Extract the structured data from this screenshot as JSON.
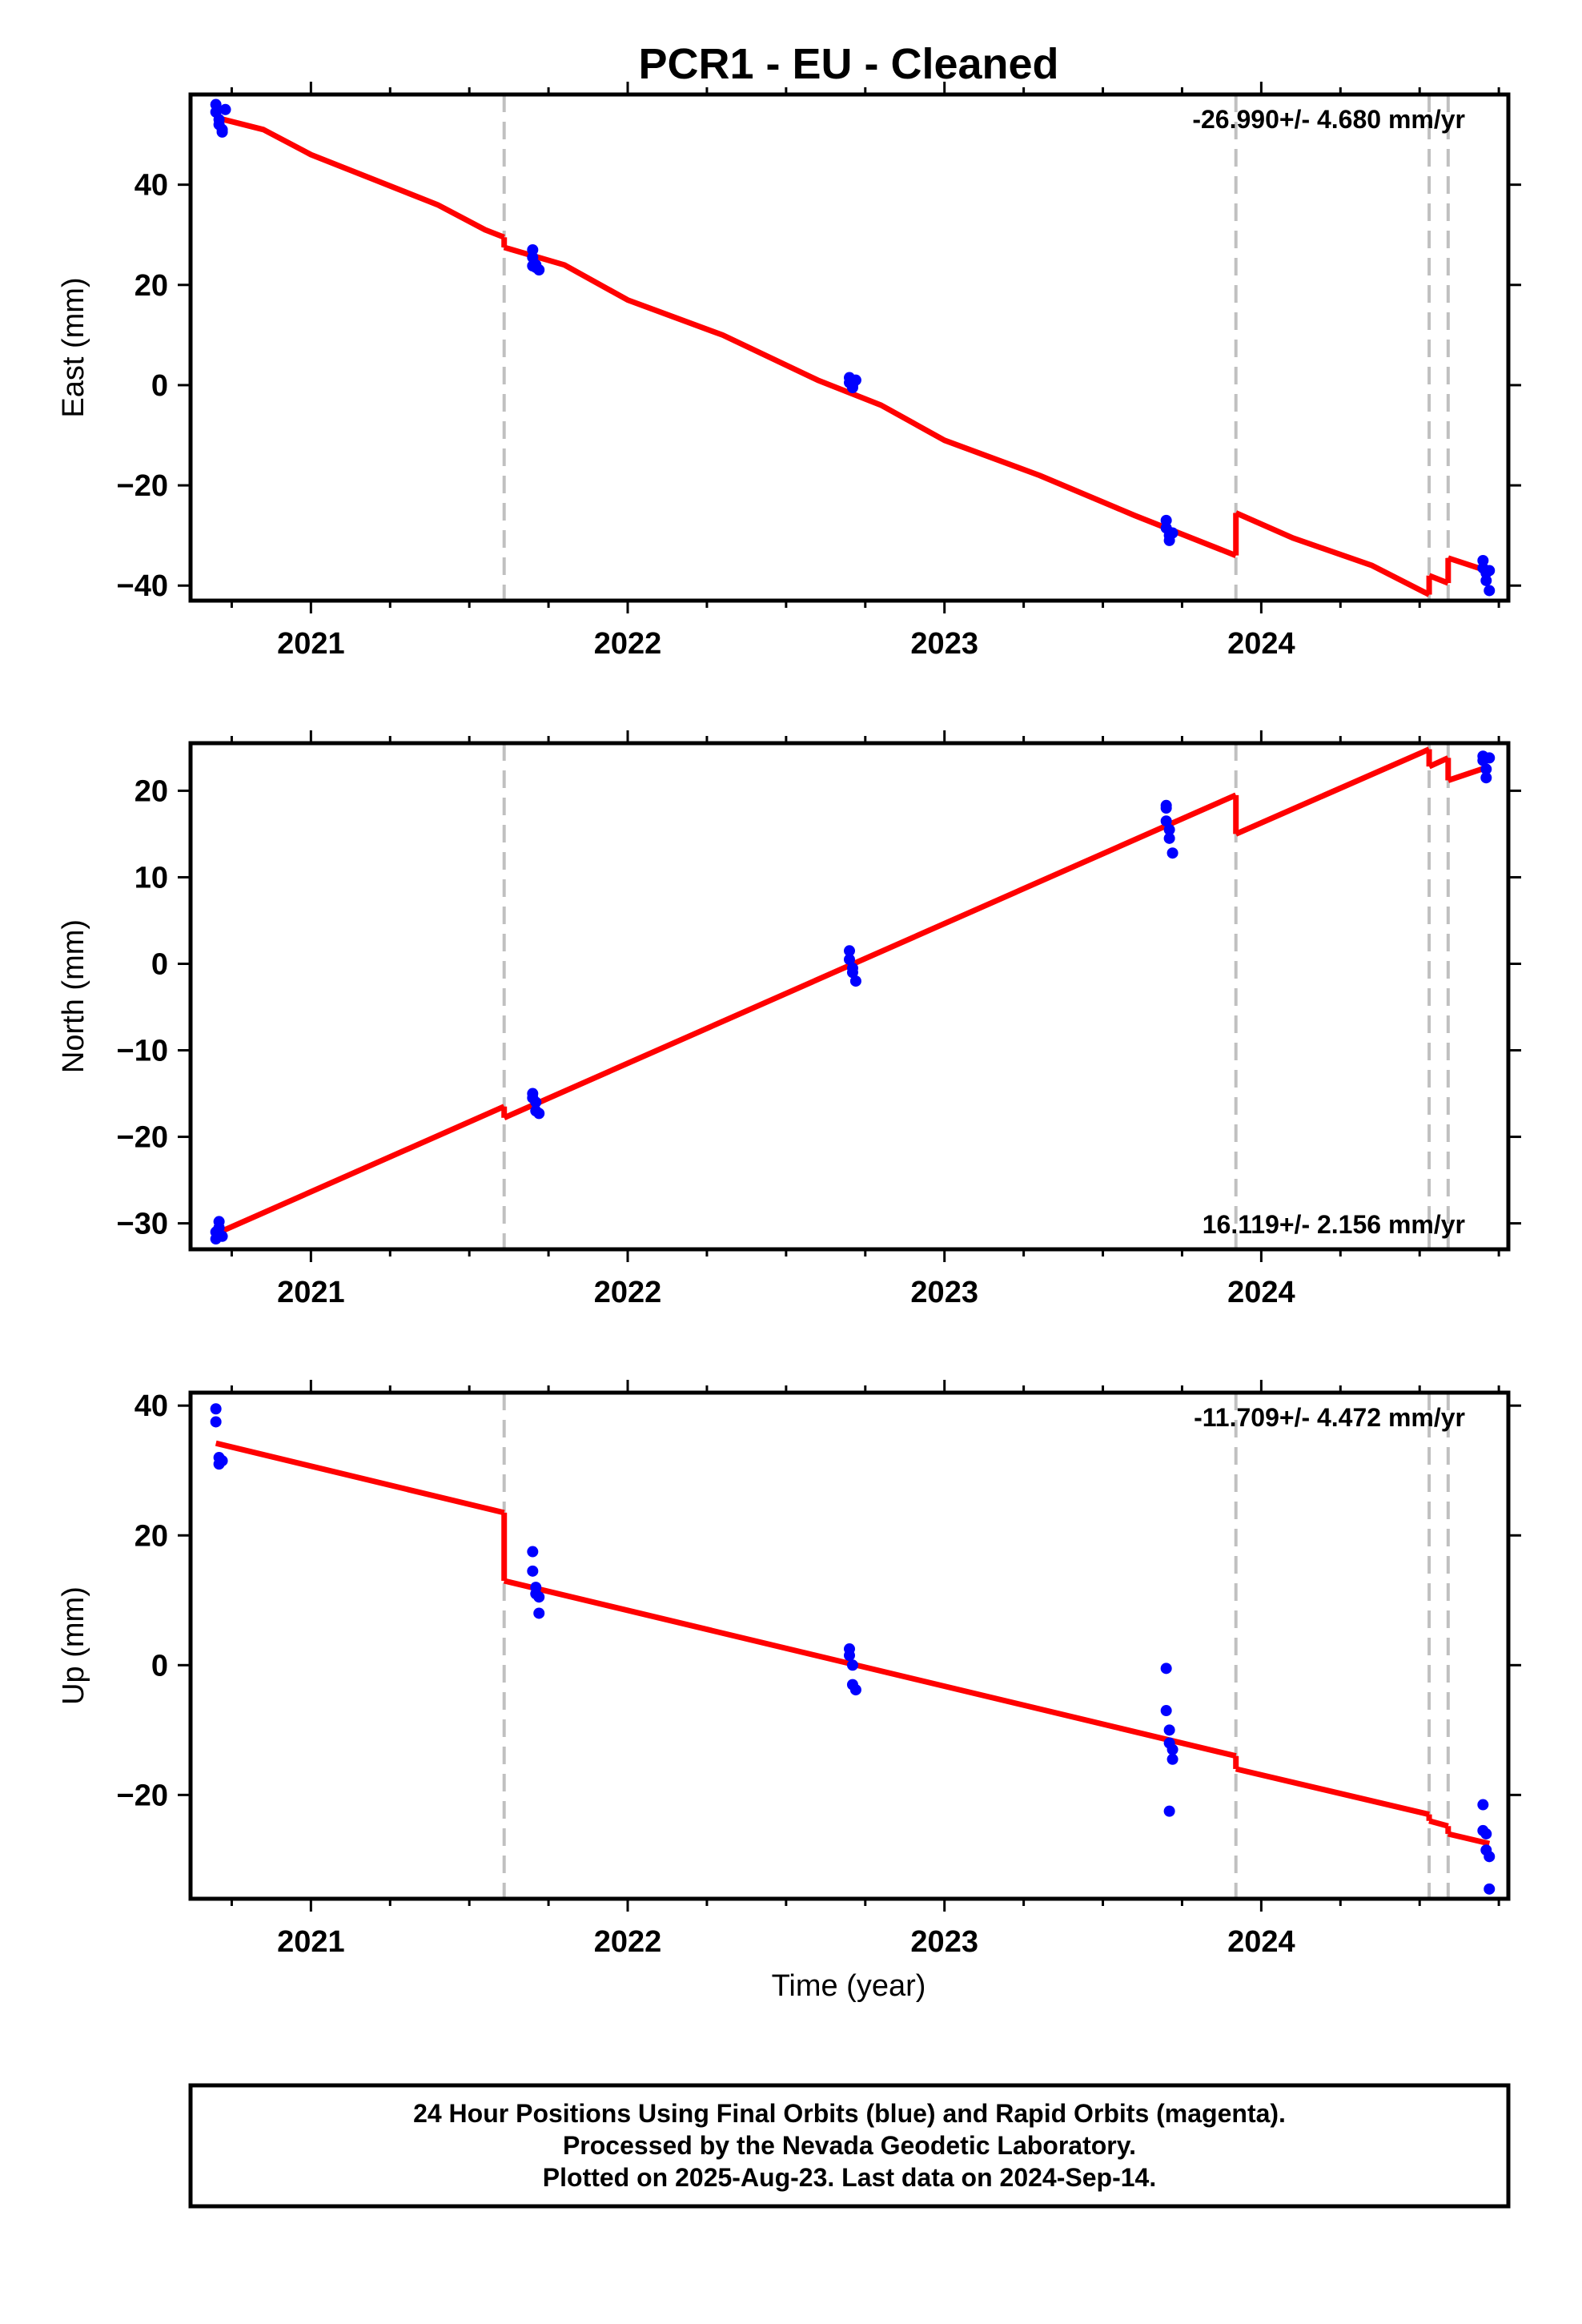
{
  "chart_data": {
    "title": "PCR1  - EU - Cleaned",
    "type": "scatter",
    "x_axis": {
      "xlabel": "Time (year)",
      "xlim": [
        2020.62,
        2024.78
      ],
      "tick_labels": [
        "2021",
        "2022",
        "2023",
        "2024"
      ],
      "tick_values": [
        2021,
        2022,
        2023,
        2024
      ]
    },
    "colors": {
      "data": "#0000ff",
      "model": "#ff0000",
      "offsets": "#c0c0c0",
      "frame": "#000000"
    },
    "offset_epochs": [
      2021.61,
      2023.92,
      2024.53,
      2024.59
    ],
    "panels": [
      {
        "name": "east",
        "ylabel": "East (mm)",
        "ylim": [
          -43,
          58
        ],
        "yticks": [
          -40,
          -20,
          0,
          20,
          40
        ],
        "ytick_labels": [
          "−40",
          "−20",
          "0",
          "20",
          "40"
        ],
        "rate_label": "-26.990+/- 4.680 mm/yr",
        "rate_position": "top-right",
        "points": [
          [
            2020.7,
            56.0
          ],
          [
            2020.7,
            54.5
          ],
          [
            2020.71,
            53.0
          ],
          [
            2020.71,
            52.0
          ],
          [
            2020.72,
            51.0
          ],
          [
            2020.72,
            50.5
          ],
          [
            2020.73,
            55.0
          ],
          [
            2021.7,
            27.0
          ],
          [
            2021.7,
            25.5
          ],
          [
            2021.71,
            24.0
          ],
          [
            2021.71,
            23.5
          ],
          [
            2021.72,
            23.0
          ],
          [
            2021.7,
            23.8
          ],
          [
            2022.7,
            1.5
          ],
          [
            2022.7,
            0.5
          ],
          [
            2022.71,
            0.0
          ],
          [
            2022.71,
            -0.5
          ],
          [
            2022.72,
            1.0
          ],
          [
            2023.7,
            -27.0
          ],
          [
            2023.7,
            -28.5
          ],
          [
            2023.71,
            -30.0
          ],
          [
            2023.71,
            -31.0
          ],
          [
            2023.72,
            -29.5
          ],
          [
            2024.7,
            -35.0
          ],
          [
            2024.7,
            -36.5
          ],
          [
            2024.71,
            -37.5
          ],
          [
            2024.71,
            -39.0
          ],
          [
            2024.72,
            -41.0
          ],
          [
            2024.72,
            -37.0
          ]
        ],
        "model_segments": [
          [
            [
              2020.7,
              53.4
            ],
            [
              2020.85,
              51.0
            ],
            [
              2021.0,
              46.0
            ],
            [
              2021.2,
              41.0
            ],
            [
              2021.4,
              36.0
            ],
            [
              2021.55,
              31.0
            ],
            [
              2021.61,
              29.5
            ]
          ],
          [
            [
              2021.61,
              27.5
            ],
            [
              2021.8,
              24.0
            ],
            [
              2022.0,
              17.0
            ],
            [
              2022.3,
              10.0
            ],
            [
              2022.6,
              1.0
            ],
            [
              2022.8,
              -4.0
            ],
            [
              2023.0,
              -11.0
            ],
            [
              2023.3,
              -18.0
            ],
            [
              2023.6,
              -26.0
            ],
            [
              2023.92,
              -34.0
            ]
          ],
          [
            [
              2023.92,
              -25.5
            ],
            [
              2024.1,
              -30.5
            ],
            [
              2024.35,
              -36.0
            ],
            [
              2024.53,
              -41.8
            ]
          ],
          [
            [
              2024.53,
              -38.0
            ],
            [
              2024.59,
              -39.5
            ]
          ],
          [
            [
              2024.59,
              -34.5
            ],
            [
              2024.72,
              -37.2
            ]
          ]
        ]
      },
      {
        "name": "north",
        "ylabel": "North (mm)",
        "ylim": [
          -33,
          25.5
        ],
        "yticks": [
          -30,
          -20,
          -10,
          0,
          10,
          20
        ],
        "ytick_labels": [
          "−30",
          "−20",
          "−10",
          "0",
          "10",
          "20"
        ],
        "rate_label": "16.119+/- 2.156 mm/yr",
        "rate_position": "bottom-right",
        "points": [
          [
            2020.7,
            -31.0
          ],
          [
            2020.7,
            -31.8
          ],
          [
            2020.71,
            -30.5
          ],
          [
            2020.71,
            -29.8
          ],
          [
            2020.72,
            -31.5
          ],
          [
            2021.7,
            -15.0
          ],
          [
            2021.7,
            -15.5
          ],
          [
            2021.71,
            -16.0
          ],
          [
            2021.71,
            -17.0
          ],
          [
            2021.72,
            -17.3
          ],
          [
            2022.7,
            1.5
          ],
          [
            2022.7,
            0.5
          ],
          [
            2022.71,
            -0.5
          ],
          [
            2022.71,
            -1.0
          ],
          [
            2022.72,
            -2.0
          ],
          [
            2023.7,
            18.0
          ],
          [
            2023.7,
            16.5
          ],
          [
            2023.71,
            15.5
          ],
          [
            2023.71,
            14.5
          ],
          [
            2023.72,
            12.8
          ],
          [
            2023.7,
            18.3
          ],
          [
            2024.7,
            24.0
          ],
          [
            2024.7,
            23.5
          ],
          [
            2024.71,
            22.5
          ],
          [
            2024.71,
            21.5
          ],
          [
            2024.72,
            23.8
          ]
        ],
        "model_segments": [
          [
            [
              2020.7,
              -31.2
            ],
            [
              2021.61,
              -16.5
            ]
          ],
          [
            [
              2021.61,
              -17.8
            ],
            [
              2023.92,
              19.5
            ]
          ],
          [
            [
              2023.92,
              15.0
            ],
            [
              2024.53,
              24.8
            ]
          ],
          [
            [
              2024.53,
              22.8
            ],
            [
              2024.59,
              23.8
            ]
          ],
          [
            [
              2024.59,
              21.2
            ],
            [
              2024.72,
              22.8
            ]
          ]
        ]
      },
      {
        "name": "up",
        "ylabel": "Up (mm)",
        "ylim": [
          -36,
          42
        ],
        "yticks": [
          -20,
          0,
          20,
          40
        ],
        "ytick_labels": [
          "−20",
          "0",
          "20",
          "40"
        ],
        "rate_label": "-11.709+/- 4.472 mm/yr",
        "rate_position": "top-right",
        "points": [
          [
            2020.7,
            39.5
          ],
          [
            2020.7,
            37.5
          ],
          [
            2020.71,
            32.0
          ],
          [
            2020.71,
            31.0
          ],
          [
            2020.72,
            31.5
          ],
          [
            2021.7,
            17.5
          ],
          [
            2021.7,
            14.5
          ],
          [
            2021.71,
            12.0
          ],
          [
            2021.71,
            11.0
          ],
          [
            2021.72,
            10.5
          ],
          [
            2021.72,
            8.0
          ],
          [
            2022.7,
            2.5
          ],
          [
            2022.7,
            1.5
          ],
          [
            2022.71,
            0.0
          ],
          [
            2022.71,
            -3.0
          ],
          [
            2022.72,
            -3.8
          ],
          [
            2023.7,
            -0.5
          ],
          [
            2023.7,
            -7.0
          ],
          [
            2023.71,
            -10.0
          ],
          [
            2023.71,
            -12.0
          ],
          [
            2023.72,
            -13.0
          ],
          [
            2023.72,
            -14.5
          ],
          [
            2023.71,
            -22.5
          ],
          [
            2024.7,
            -21.5
          ],
          [
            2024.7,
            -25.5
          ],
          [
            2024.71,
            -26.0
          ],
          [
            2024.71,
            -28.5
          ],
          [
            2024.72,
            -29.5
          ],
          [
            2024.72,
            -34.5
          ]
        ],
        "model_segments": [
          [
            [
              2020.7,
              34.2
            ],
            [
              2021.61,
              23.5
            ]
          ],
          [
            [
              2021.61,
              13.0
            ],
            [
              2023.92,
              -14.0
            ]
          ],
          [
            [
              2023.92,
              -16.0
            ],
            [
              2024.53,
              -23.0
            ]
          ],
          [
            [
              2024.53,
              -24.0
            ],
            [
              2024.59,
              -24.8
            ]
          ],
          [
            [
              2024.59,
              -26.0
            ],
            [
              2024.72,
              -27.5
            ]
          ]
        ]
      }
    ]
  },
  "footer": {
    "line1": "24 Hour Positions Using Final Orbits (blue) and Rapid Orbits (magenta).",
    "line2": "Processed by the Nevada Geodetic Laboratory.",
    "line3": "Plotted on 2025-Aug-23. Last data on 2024-Sep-14."
  }
}
